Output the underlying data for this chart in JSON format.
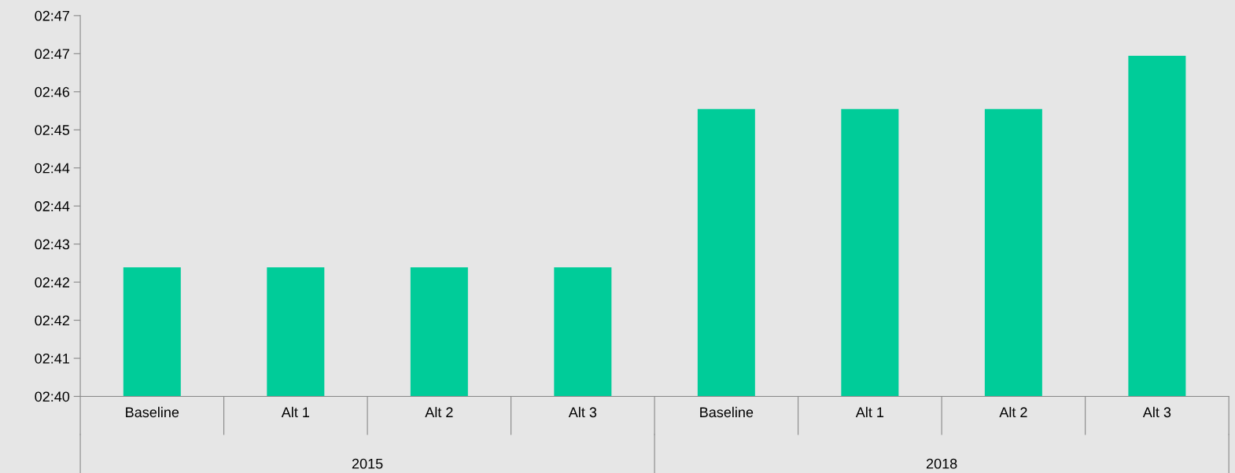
{
  "chart_data": {
    "type": "bar",
    "categories": [
      "Baseline",
      "Alt 1",
      "Alt 2",
      "Alt 3",
      "Baseline",
      "Alt 1",
      "Alt 2",
      "Alt 3"
    ],
    "values": [
      162.54,
      162.54,
      162.54,
      162.54,
      165.66,
      165.66,
      165.66,
      166.71
    ],
    "color": "#00cc99",
    "ylim": [
      160,
      167.5
    ],
    "yticks": [
      {
        "value": 160,
        "label": "02:40"
      },
      {
        "value": 160.75,
        "label": "02:41"
      },
      {
        "value": 161.5,
        "label": "02:42"
      },
      {
        "value": 162.25,
        "label": "02:42"
      },
      {
        "value": 163,
        "label": "02:43"
      },
      {
        "value": 163.75,
        "label": "02:44"
      },
      {
        "value": 164.5,
        "label": "02:44"
      },
      {
        "value": 165.25,
        "label": "02:45"
      },
      {
        "value": 166,
        "label": "02:46"
      },
      {
        "value": 166.75,
        "label": "02:47"
      },
      {
        "value": 167.5,
        "label": "02:47"
      }
    ],
    "annotations": [
      "2015",
      "2018"
    ],
    "grid": false,
    "legend": false
  }
}
